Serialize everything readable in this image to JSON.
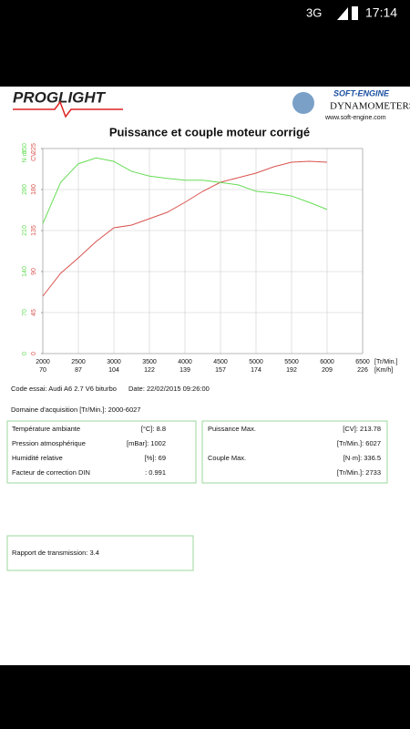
{
  "status_bar": {
    "network": "3G",
    "time": "17:14"
  },
  "header": {
    "logo": "PROGLIGHT",
    "brand": "SOFT-ENGINE",
    "brand_sub": "DYNAMOMETERS",
    "url": "www.soft-engine.com"
  },
  "chart_data": {
    "type": "line",
    "title": "Puissance et couple moteur corrigé",
    "x": [
      2000,
      2250,
      2500,
      2750,
      3000,
      3250,
      3500,
      3750,
      4000,
      4250,
      4500,
      4750,
      5000,
      5250,
      5500,
      5750,
      6000
    ],
    "xlim": [
      2000,
      6500
    ],
    "xticks": [
      2000,
      2500,
      3000,
      3500,
      4000,
      4500,
      5000,
      5500,
      6000,
      6500
    ],
    "x_speed_labels": [
      70,
      87,
      104,
      122,
      139,
      157,
      174,
      192,
      209,
      226
    ],
    "x_label": "[Tr/Min.]",
    "x_speed_label": "[Km/h]",
    "y_label": "CV",
    "y2_label": "N·m",
    "ylim": [
      0,
      225
    ],
    "yticks": [
      0,
      45,
      90,
      135,
      180,
      225
    ],
    "y2lim": [
      0,
      350
    ],
    "y2ticks": [
      0,
      70,
      140,
      210,
      280,
      350
    ],
    "grid": true,
    "series": [
      {
        "name": "Puissance",
        "color": "#d9534f",
        "values": [
          63,
          88,
          105,
          123,
          138,
          141,
          148,
          155,
          166,
          178,
          188,
          193,
          198,
          205,
          210,
          211,
          210
        ]
      },
      {
        "name": "Couple",
        "color": "#66dd55",
        "axis": "y2",
        "values": [
          222,
          292,
          324,
          334,
          328,
          311,
          303,
          299,
          296,
          296,
          292,
          288,
          277,
          274,
          269,
          258,
          246
        ]
      }
    ]
  },
  "info": {
    "test": "Code essai: Audi A6 2.7 V6 biturbo",
    "date": "Date: 22/02/2015 09:26:00",
    "range": "Domaine d'acquisition [Tr/Min.]: 2000-6027",
    "conditions": [
      [
        "Température ambiante",
        "[°C]: 8.8"
      ],
      [
        "Pression atmosphérique",
        "[mBar]: 1002"
      ],
      [
        "Humidité relative",
        "[%]: 69"
      ],
      [
        "Facteur de correction DIN",
        ": 0.991"
      ]
    ],
    "results": [
      [
        "Puissance Max.",
        "[CV]: 213.78"
      ],
      [
        "[Tr/Min.]: 6027"
      ],
      [
        "Couple Max.",
        "[N·m]: 336.5"
      ],
      [
        "[Tr/Min.]: 2733"
      ]
    ],
    "gear": "Rapport de transmission: 3.4"
  }
}
